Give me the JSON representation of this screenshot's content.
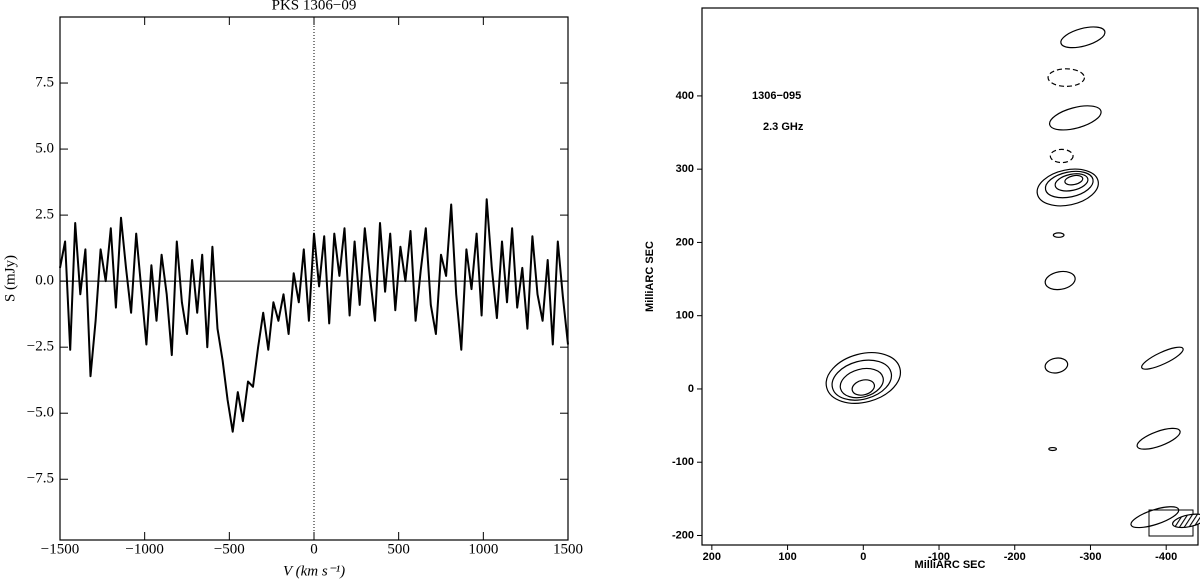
{
  "chart_data": [
    {
      "type": "line",
      "title": "PKS 1306−09",
      "xlabel": "V (km s⁻¹)",
      "ylabel": "S (mJy)",
      "xlim": [
        -1500,
        1500
      ],
      "ylim": [
        -9.8,
        10
      ],
      "xticks": [
        {
          "value": -1500,
          "label": "−1500"
        },
        {
          "value": -1000,
          "label": "−1000"
        },
        {
          "value": -500,
          "label": "−500"
        },
        0,
        500,
        1000,
        1500
      ],
      "yticks": [
        {
          "value": -7.5,
          "label": "−7.5"
        },
        {
          "value": -5,
          "label": "−5.0"
        },
        {
          "value": -2.5,
          "label": "−2.5"
        },
        {
          "value": 0,
          "label": "0.0"
        },
        2.5,
        {
          "value": 5,
          "label": "5.0"
        },
        7.5
      ],
      "color": "#000000",
      "x": [
        -1500,
        -1470,
        -1440,
        -1410,
        -1380,
        -1350,
        -1320,
        -1290,
        -1260,
        -1230,
        -1200,
        -1170,
        -1140,
        -1110,
        -1080,
        -1050,
        -1020,
        -990,
        -960,
        -930,
        -900,
        -870,
        -840,
        -810,
        -780,
        -750,
        -720,
        -690,
        -660,
        -630,
        -600,
        -570,
        -540,
        -510,
        -480,
        -450,
        -420,
        -390,
        -360,
        -330,
        -300,
        -270,
        -240,
        -210,
        -180,
        -150,
        -120,
        -90,
        -60,
        -30,
        0,
        30,
        60,
        90,
        120,
        150,
        180,
        210,
        240,
        270,
        300,
        330,
        360,
        390,
        420,
        450,
        480,
        510,
        540,
        570,
        600,
        630,
        660,
        690,
        720,
        750,
        780,
        810,
        840,
        870,
        900,
        930,
        960,
        990,
        1020,
        1050,
        1080,
        1110,
        1140,
        1170,
        1200,
        1230,
        1260,
        1290,
        1320,
        1350,
        1380,
        1410,
        1440,
        1470,
        1500
      ],
      "values": [
        0.5,
        1.5,
        -2.6,
        2.2,
        -0.5,
        1.2,
        -3.6,
        -1.5,
        1.2,
        0.0,
        2.0,
        -1.0,
        2.4,
        0.5,
        -1.2,
        1.8,
        -0.3,
        -2.4,
        0.6,
        -1.5,
        1.0,
        -0.5,
        -2.8,
        1.5,
        -0.8,
        -2.0,
        0.8,
        -1.2,
        1.0,
        -2.5,
        1.3,
        -1.8,
        -3.0,
        -4.5,
        -5.7,
        -4.2,
        -5.3,
        -3.8,
        -4.0,
        -2.5,
        -1.2,
        -2.6,
        -0.8,
        -1.5,
        -0.5,
        -2.0,
        0.3,
        -0.8,
        1.2,
        -1.5,
        1.8,
        -0.2,
        1.7,
        -1.6,
        1.8,
        0.2,
        2.0,
        -1.3,
        1.5,
        -0.9,
        2.0,
        0.2,
        -1.5,
        2.2,
        -0.4,
        1.8,
        -1.1,
        1.3,
        0.0,
        1.9,
        -1.5,
        0.4,
        2.0,
        -0.9,
        -2.0,
        1.0,
        0.2,
        2.9,
        -0.5,
        -2.6,
        1.2,
        -0.3,
        1.8,
        -1.3,
        3.1,
        0.5,
        -1.4,
        1.5,
        -0.8,
        2.0,
        -1.0,
        0.5,
        -1.8,
        1.7,
        -0.5,
        -1.5,
        0.8,
        -2.4,
        1.5,
        -0.6,
        -2.4
      ]
    },
    {
      "type": "contour",
      "xlabel": "MilliARC SEC",
      "ylabel": "MilliARC SEC",
      "annotations": [
        "1306−095",
        "2.3 GHz"
      ],
      "xlim": [
        213,
        -442
      ],
      "ylim": [
        -213,
        520
      ],
      "xticks": [
        200,
        100,
        0,
        -100,
        -200,
        -300,
        -400
      ],
      "yticks": [
        -200,
        -100,
        0,
        100,
        200,
        300,
        400
      ],
      "color": "#000000",
      "contours": [
        {
          "x": 0,
          "y": 15,
          "rx": 50,
          "ry": 33,
          "angle": 15,
          "style": "solid"
        },
        {
          "x": 2,
          "y": 12,
          "rx": 40,
          "ry": 26,
          "angle": 15,
          "style": "solid"
        },
        {
          "x": 2,
          "y": 8,
          "rx": 29,
          "ry": 19,
          "angle": 15,
          "style": "solid"
        },
        {
          "x": 0,
          "y": 2,
          "rx": 15,
          "ry": 10,
          "angle": 15,
          "style": "solid"
        },
        {
          "x": -270,
          "y": 275,
          "rx": 41,
          "ry": 24,
          "angle": 12,
          "style": "solid"
        },
        {
          "x": -272,
          "y": 279,
          "rx": 32,
          "ry": 17,
          "angle": 12,
          "style": "solid"
        },
        {
          "x": -275,
          "y": 282,
          "rx": 22,
          "ry": 11,
          "angle": 12,
          "style": "solid"
        },
        {
          "x": -278,
          "y": 285,
          "rx": 12,
          "ry": 6,
          "angle": 12,
          "style": "solid"
        },
        {
          "x": -268,
          "y": 425,
          "rx": 24,
          "ry": 12,
          "angle": 0,
          "style": "dashed"
        },
        {
          "x": -262,
          "y": 318,
          "rx": 15,
          "ry": 9,
          "angle": 0,
          "style": "dashed"
        },
        {
          "x": -280,
          "y": 370,
          "rx": 35,
          "ry": 14,
          "angle": 15,
          "style": "solid"
        },
        {
          "x": -290,
          "y": 480,
          "rx": 30,
          "ry": 12,
          "angle": 15,
          "style": "solid"
        },
        {
          "x": -260,
          "y": 148,
          "rx": 20,
          "ry": 12,
          "angle": 10,
          "style": "solid"
        },
        {
          "x": -258,
          "y": 210,
          "rx": 7,
          "ry": 3,
          "angle": 0,
          "style": "solid"
        },
        {
          "x": -255,
          "y": 32,
          "rx": 15,
          "ry": 10,
          "angle": 10,
          "style": "solid"
        },
        {
          "x": -395,
          "y": 42,
          "rx": 30,
          "ry": 8,
          "angle": 25,
          "style": "solid"
        },
        {
          "x": -390,
          "y": -68,
          "rx": 30,
          "ry": 10,
          "angle": 20,
          "style": "solid"
        },
        {
          "x": -385,
          "y": -175,
          "rx": 33,
          "ry": 10,
          "angle": 18,
          "style": "solid"
        },
        {
          "x": -250,
          "y": -82,
          "rx": 5,
          "ry": 2,
          "angle": 0,
          "style": "solid"
        },
        {
          "x": -430,
          "y": -180,
          "rx": 22,
          "ry": 8,
          "angle": 12,
          "style": "beam"
        }
      ]
    }
  ]
}
